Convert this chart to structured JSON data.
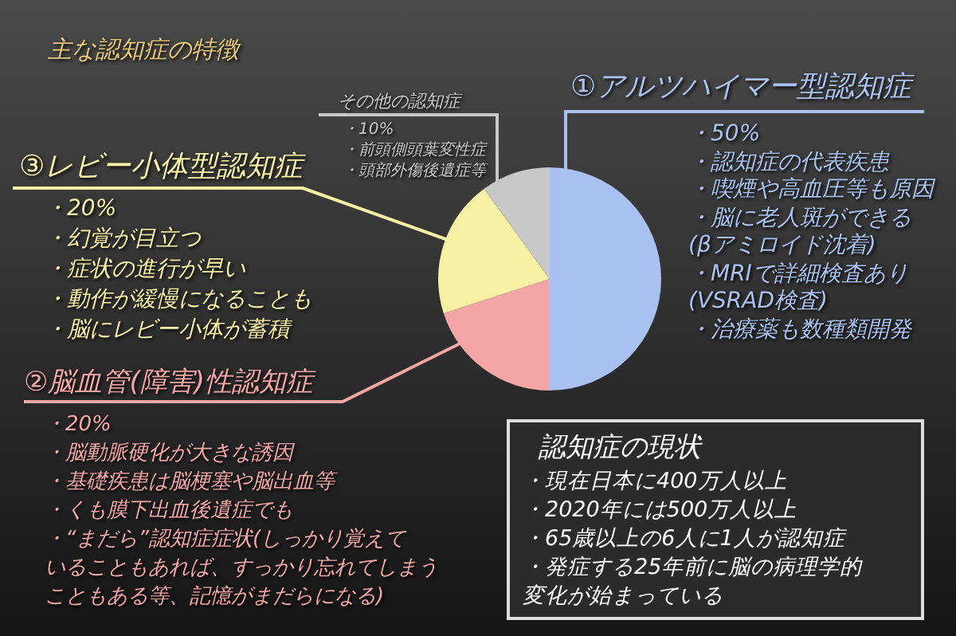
{
  "chart_data": {
    "type": "pie",
    "title": "主な認知症の特徴",
    "categories": [
      "①アルツハイマー型認知症",
      "②脳血管(障害)性認知症",
      "③レビー小体型認知症",
      "その他の認知症"
    ],
    "values": [
      50,
      20,
      20,
      10
    ],
    "colors": [
      "#a9c1f0",
      "#f4a6a6",
      "#f7f0a5",
      "#c8c8c8"
    ],
    "value_labels": [
      "・50%",
      "・20%",
      "・20%",
      "・10%"
    ],
    "annotations": [
      "・認知症の代表疾患",
      "・喫煙や高血圧等も原因",
      "・脳に老人斑ができる",
      "(βアミロイド沈着)",
      "・MRIで詳細検査あり",
      "(VSRAD検査)",
      "・治療薬も数種類開発",
      "・脳動脈硬化が大きな誘因",
      "・基礎疾患は脳梗塞や脳出血等",
      "・くも膜下出血後遺症でも",
      "・“まだら”認知症症状(しっかり覚えて",
      "いることもあれば、すっかり忘れてしまう",
      "こともある等、記憶がまだらになる)",
      "・幻覚が目立つ",
      "・症状の進行が早い",
      "・動作が緩慢になることも",
      "・脳にレビー小体が蓄積",
      "・前頭側頭葉変性症",
      "・頭部外傷後遺症等",
      "認知症の現状",
      "・現在日本に400万人以上",
      "・2020年には500万人以上",
      "・65歳以上の6人に1人が認知症",
      "・発症する25年前に脳の病理学的",
      "変化が始まっている"
    ]
  }
}
